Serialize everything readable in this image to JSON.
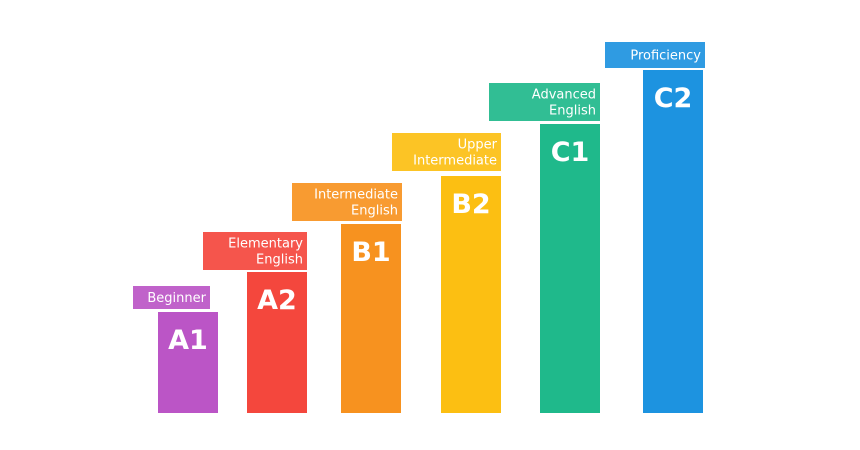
{
  "levels": [
    {
      "code": "A1",
      "label_lines": [
        "Beginner"
      ],
      "color": "#bb55c6"
    },
    {
      "code": "A2",
      "label_lines": [
        "Elementary",
        "English"
      ],
      "color": "#f4473d"
    },
    {
      "code": "B1",
      "label_lines": [
        "Intermediate",
        "English"
      ],
      "color": "#f7921f"
    },
    {
      "code": "B2",
      "label_lines": [
        "Upper",
        "Intermediate"
      ],
      "color": "#fcbf12"
    },
    {
      "code": "C1",
      "label_lines": [
        "Advanced",
        "English"
      ],
      "color": "#1fb98b"
    },
    {
      "code": "C2",
      "label_lines": [
        "Proficiency"
      ],
      "color": "#1d93e0"
    }
  ]
}
